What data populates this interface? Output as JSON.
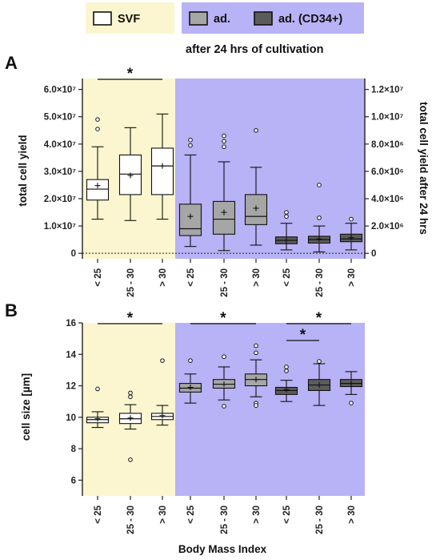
{
  "colors": {
    "svf_background": "#fbf6cf",
    "ad_background": "#b8b2f6",
    "svf_box": "#ffffff",
    "ad_box": "#a6a6a6",
    "ad_cd34_box": "#5c5c5c",
    "legend_ad_background": "#b8b2f6",
    "legend_svf_background": "#fbf6cf"
  },
  "legend": {
    "svf": "SVF",
    "ad": "ad.",
    "ad_cd34": "ad. (CD34+)",
    "subtitle": "after 24 hrs of cultivation"
  },
  "xlabel": "Body Mass Index",
  "chart_data": [
    {
      "type": "box",
      "panel_label": "A",
      "ylabel_left": "total cell yield",
      "ylabel_right": "total cell yield after 24 hrs",
      "categories": [
        "< 25",
        "25 - 30",
        "> 30",
        "< 25",
        "25 - 30",
        "> 30",
        "< 25",
        "25 - 30",
        "> 30"
      ],
      "ylim_left": [
        -2000000,
        64000000
      ],
      "yticks_left": [
        0,
        10000000,
        20000000,
        30000000,
        40000000,
        50000000,
        60000000
      ],
      "yticklabels_left": [
        "0",
        "1.0×10⁷",
        "2.0×10⁷",
        "3.0×10⁷",
        "4.0×10⁷",
        "5.0×10⁷",
        "6.0×10⁷"
      ],
      "ylim_right": [
        -400000,
        12800000
      ],
      "yticks_right": [
        0,
        2000000,
        4000000,
        6000000,
        8000000,
        10000000,
        12000000
      ],
      "yticklabels_right": [
        "0",
        "2.0×10⁶",
        "4.0×10⁶",
        "6.0×10⁶",
        "8.0×10⁶",
        "1.0×10⁷",
        "1.2×10⁷"
      ],
      "zero_line": "dotted",
      "series": [
        {
          "name": "SVF",
          "axis": "left",
          "boxes": [
            {
              "category": "< 25",
              "whisker_low": 12500000,
              "q1": 19500000,
              "median": 23500000,
              "q3": 27000000,
              "whisker_high": 39000000,
              "mean": 24800000,
              "outliers": [
                45500000,
                49000000
              ]
            },
            {
              "category": "25 - 30",
              "whisker_low": 12000000,
              "q1": 21500000,
              "median": 29000000,
              "q3": 36000000,
              "whisker_high": 46000000,
              "mean": 28500000,
              "outliers": []
            },
            {
              "category": "> 30",
              "whisker_low": 12500000,
              "q1": 21500000,
              "median": 32000000,
              "q3": 38500000,
              "whisker_high": 51000000,
              "mean": 32000000,
              "outliers": []
            }
          ]
        },
        {
          "name": "ad.",
          "axis": "right",
          "boxes": [
            {
              "category": "< 25",
              "whisker_low": 500000,
              "q1": 1300000,
              "median": 1800000,
              "q3": 3600000,
              "whisker_high": 7200000,
              "mean": 2700000,
              "outliers": [
                7900000,
                8300000
              ]
            },
            {
              "category": "25 - 30",
              "whisker_low": 200000,
              "q1": 1400000,
              "median": 2500000,
              "q3": 3800000,
              "whisker_high": 6700000,
              "mean": 3000000,
              "outliers": [
                7800000,
                8200000,
                8600000
              ]
            },
            {
              "category": "> 30",
              "whisker_low": 600000,
              "q1": 2100000,
              "median": 2700000,
              "q3": 4300000,
              "whisker_high": 6300000,
              "mean": 3300000,
              "outliers": [
                9000000
              ]
            }
          ]
        },
        {
          "name": "ad. (CD34+)",
          "axis": "right",
          "boxes": [
            {
              "category": "< 25",
              "whisker_low": 250000,
              "q1": 700000,
              "median": 950000,
              "q3": 1200000,
              "whisker_high": 2200000,
              "mean": 950000,
              "outliers": [
                2700000,
                3000000
              ]
            },
            {
              "category": "25 - 30",
              "whisker_low": 100000,
              "q1": 750000,
              "median": 1000000,
              "q3": 1250000,
              "whisker_high": 2000000,
              "mean": 1050000,
              "outliers": [
                2600000,
                5000000
              ]
            },
            {
              "category": "> 30",
              "whisker_low": 250000,
              "q1": 850000,
              "median": 1050000,
              "q3": 1400000,
              "whisker_high": 2200000,
              "mean": 1150000,
              "outliers": [
                2500000
              ]
            }
          ]
        }
      ],
      "significance": [
        {
          "from": "< 25",
          "to": "> 30",
          "group": "SVF",
          "label": "*"
        }
      ]
    },
    {
      "type": "box",
      "panel_label": "B",
      "ylabel": "cell size [µm]",
      "categories": [
        "< 25",
        "25 - 30",
        "> 30",
        "< 25",
        "25 - 30",
        "> 30",
        "< 25",
        "25 - 30",
        "> 30"
      ],
      "ylim": [
        5,
        16
      ],
      "yticks": [
        6,
        8,
        10,
        12,
        14,
        16
      ],
      "yticklabels": [
        "6",
        "8",
        "10",
        "12",
        "14",
        "16"
      ],
      "series": [
        {
          "name": "SVF",
          "boxes": [
            {
              "category": "< 25",
              "whisker_low": 9.35,
              "q1": 9.65,
              "median": 9.85,
              "q3": 10.0,
              "whisker_high": 10.35,
              "mean": 9.9,
              "outliers": [
                11.8
              ]
            },
            {
              "category": "25 - 30",
              "whisker_low": 9.25,
              "q1": 9.6,
              "median": 9.9,
              "q3": 10.25,
              "whisker_high": 10.8,
              "mean": 9.95,
              "outliers": [
                11.3,
                11.55,
                7.3
              ]
            },
            {
              "category": "> 30",
              "whisker_low": 9.5,
              "q1": 9.85,
              "median": 10.05,
              "q3": 10.25,
              "whisker_high": 10.75,
              "mean": 10.1,
              "outliers": [
                13.6
              ]
            }
          ]
        },
        {
          "name": "ad.",
          "boxes": [
            {
              "category": "< 25",
              "whisker_low": 10.9,
              "q1": 11.6,
              "median": 11.85,
              "q3": 12.15,
              "whisker_high": 12.75,
              "mean": 11.9,
              "outliers": [
                13.6
              ]
            },
            {
              "category": "25 - 30",
              "whisker_low": 11.1,
              "q1": 11.85,
              "median": 12.1,
              "q3": 12.4,
              "whisker_high": 13.2,
              "mean": 12.1,
              "outliers": [
                13.85,
                10.7
              ]
            },
            {
              "category": "> 30",
              "whisker_low": 11.3,
              "q1": 12.0,
              "median": 12.4,
              "q3": 12.75,
              "whisker_high": 13.65,
              "mean": 12.4,
              "outliers": [
                14.1,
                14.55,
                10.9,
                10.75
              ]
            }
          ]
        },
        {
          "name": "ad. (CD34+)",
          "boxes": [
            {
              "category": "< 25",
              "whisker_low": 11.0,
              "q1": 11.45,
              "median": 11.7,
              "q3": 11.9,
              "whisker_high": 12.35,
              "mean": 11.75,
              "outliers": [
                12.95,
                13.2
              ]
            },
            {
              "category": "25 - 30",
              "whisker_low": 10.75,
              "q1": 11.7,
              "median": 12.05,
              "q3": 12.4,
              "whisker_high": 13.4,
              "mean": 12.05,
              "outliers": [
                13.55
              ]
            },
            {
              "category": "> 30",
              "whisker_low": 11.45,
              "q1": 11.95,
              "median": 12.15,
              "q3": 12.4,
              "whisker_high": 12.9,
              "mean": 12.15,
              "outliers": [
                10.9
              ]
            }
          ]
        }
      ],
      "significance": [
        {
          "from": "< 25",
          "to": "> 30",
          "group": "SVF",
          "label": "*"
        },
        {
          "from": "< 25",
          "to": "> 30",
          "group": "ad.",
          "label": "*"
        },
        {
          "from": "< 25",
          "to": "> 30",
          "group": "ad. (CD34+)",
          "label": "*"
        },
        {
          "from": "< 25",
          "to": "25 - 30",
          "group": "ad. (CD34+)",
          "label": "*"
        }
      ]
    }
  ]
}
